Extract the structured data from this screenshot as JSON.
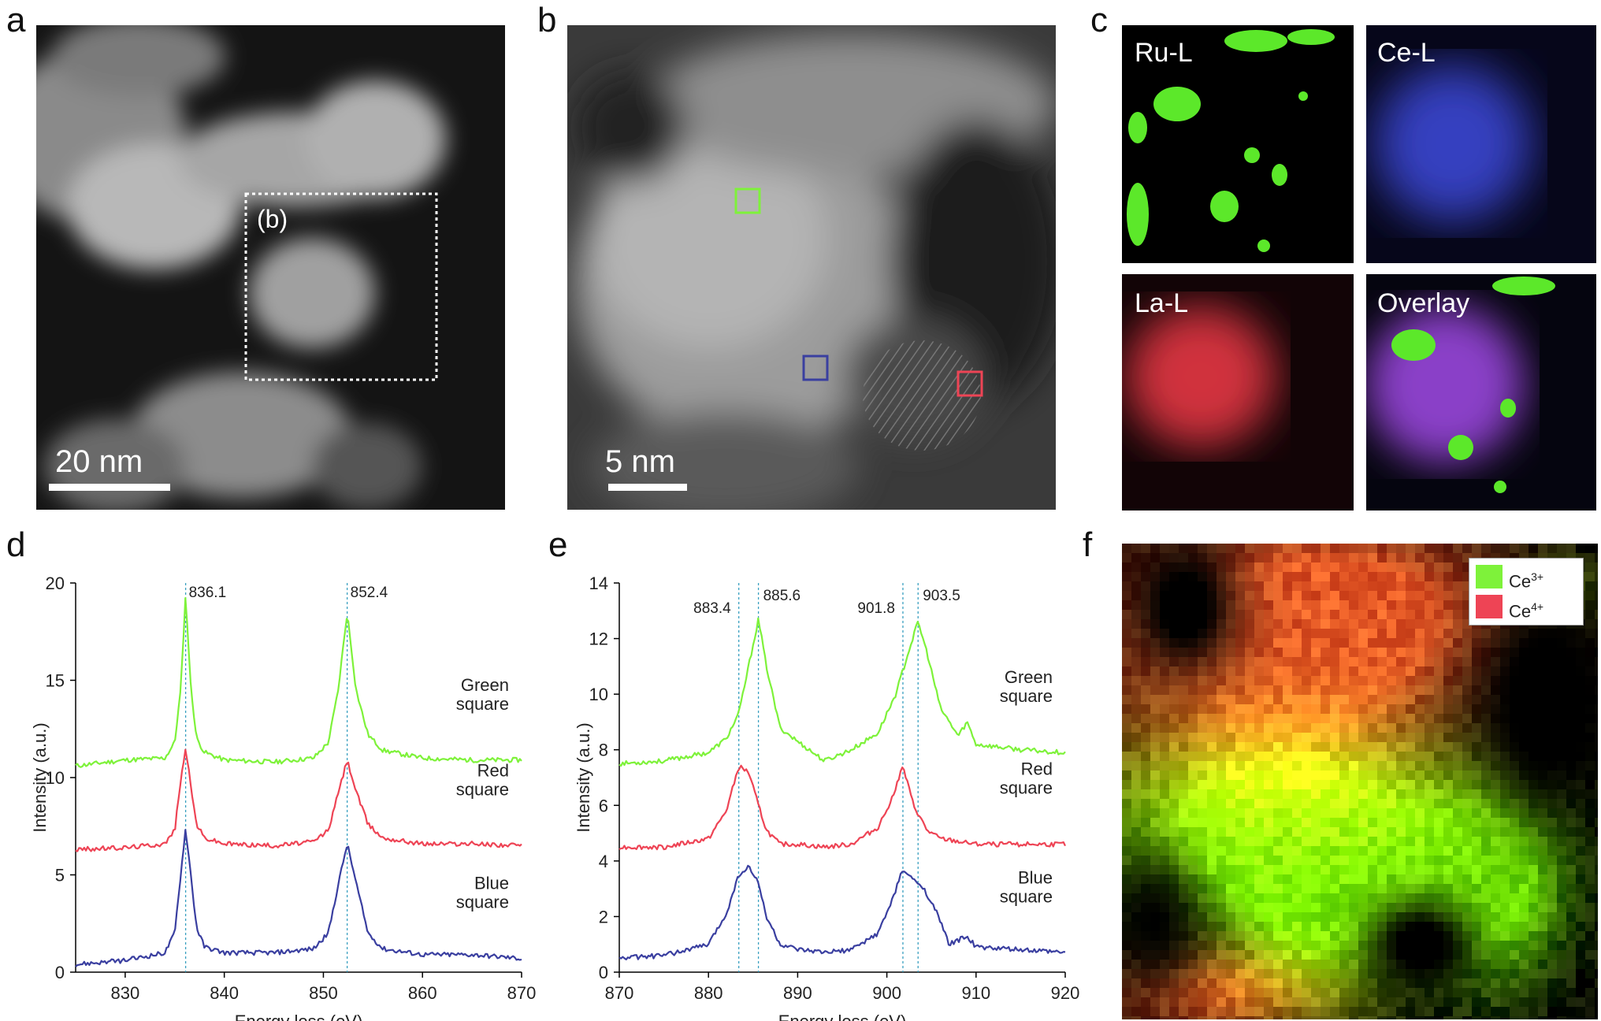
{
  "panels": {
    "a": {
      "letter": "a",
      "inset_label": "(b)",
      "scalebar": "20 nm"
    },
    "b": {
      "letter": "b",
      "scalebar": "5 nm"
    },
    "c": {
      "letter": "c",
      "maps": [
        "Ru-L",
        "Ce-L",
        "La-L",
        "Overlay"
      ]
    },
    "d": {
      "letter": "d"
    },
    "e": {
      "letter": "e"
    },
    "f": {
      "letter": "f",
      "legend": [
        "Ce3+",
        "Ce4+"
      ]
    }
  },
  "colors": {
    "green": "#7ef23a",
    "red": "#ee4455",
    "blue": "#3a3fa0",
    "guide": "#3aa0c0"
  },
  "chart_data": [
    {
      "id": "d",
      "type": "line",
      "xlabel": "Energy loss (eV)",
      "ylabel": "Intensity (a.u.)",
      "xlim": [
        825,
        870
      ],
      "ylim": [
        0,
        20
      ],
      "xticks": [
        830,
        840,
        850,
        860,
        870
      ],
      "yticks": [
        0,
        5,
        10,
        15,
        20
      ],
      "peak_lines": [
        836.1,
        852.4
      ],
      "peak_labels": [
        "836.1",
        "852.4"
      ],
      "series": [
        {
          "name": "Green square",
          "label_lines": [
            "Green",
            "square"
          ],
          "color": "#7ef23a",
          "x": [
            825,
            830,
            834,
            835,
            835.6,
            836.1,
            836.6,
            837.2,
            838,
            840,
            845,
            849,
            850.5,
            851.5,
            852.4,
            853.3,
            854.5,
            856,
            860,
            865,
            870
          ],
          "y": [
            10.6,
            10.9,
            11.0,
            11.8,
            14.5,
            19.4,
            14.8,
            12.0,
            11.3,
            10.9,
            10.8,
            11.0,
            11.8,
            14.5,
            18.5,
            14.5,
            12.2,
            11.4,
            11.0,
            10.9,
            10.9
          ]
        },
        {
          "name": "Red square",
          "label_lines": [
            "Red",
            "square"
          ],
          "color": "#ee4455",
          "x": [
            825,
            830,
            834,
            835,
            835.6,
            836.1,
            836.6,
            837.2,
            838,
            840,
            845,
            849,
            850.5,
            851.5,
            852.4,
            853.3,
            854.5,
            856,
            860,
            865,
            870
          ],
          "y": [
            6.3,
            6.4,
            6.6,
            7.3,
            9.8,
            11.6,
            9.6,
            7.6,
            6.9,
            6.6,
            6.5,
            6.7,
            7.3,
            9.2,
            10.9,
            9.3,
            7.6,
            6.9,
            6.6,
            6.6,
            6.5
          ]
        },
        {
          "name": "Blue square",
          "label_lines": [
            "Blue",
            "square"
          ],
          "color": "#3a3fa0",
          "x": [
            825,
            830,
            834,
            835,
            835.6,
            836.1,
            836.6,
            837.2,
            838,
            840,
            845,
            849,
            850.5,
            851.5,
            852.4,
            853.3,
            854.5,
            856,
            860,
            865,
            870
          ],
          "y": [
            0.4,
            0.6,
            1.0,
            2.0,
            5.0,
            7.4,
            5.1,
            2.3,
            1.3,
            1.0,
            1.0,
            1.2,
            2.0,
            4.5,
            6.6,
            4.6,
            2.0,
            1.2,
            0.9,
            0.9,
            0.7
          ]
        }
      ]
    },
    {
      "id": "e",
      "type": "line",
      "xlabel": "Energy loss (eV)",
      "ylabel": "Intensity (a.u.)",
      "xlim": [
        870,
        920
      ],
      "ylim": [
        0,
        14
      ],
      "xticks": [
        870,
        880,
        890,
        900,
        910,
        920
      ],
      "yticks": [
        0,
        2,
        4,
        6,
        8,
        10,
        12,
        14
      ],
      "peak_lines": [
        883.4,
        885.6,
        901.8,
        903.5
      ],
      "peak_labels": [
        "883.4",
        "885.6",
        "901.8",
        "903.5"
      ],
      "series": [
        {
          "name": "Green square",
          "label_lines": [
            "Green",
            "square"
          ],
          "color": "#7ef23a",
          "x": [
            870,
            875,
            880,
            882,
            883.4,
            884.5,
            885.6,
            886.5,
            888,
            890,
            893,
            896,
            899,
            901,
            902.5,
            903.5,
            904.5,
            906,
            908,
            909,
            910,
            915,
            920
          ],
          "y": [
            7.5,
            7.6,
            7.9,
            8.4,
            9.3,
            11.0,
            12.7,
            11.0,
            8.8,
            8.3,
            7.6,
            8.0,
            8.6,
            10.0,
            11.6,
            12.6,
            11.5,
            9.5,
            8.5,
            9.0,
            8.2,
            8.0,
            7.9
          ]
        },
        {
          "name": "Red square",
          "label_lines": [
            "Red",
            "square"
          ],
          "color": "#ee4455",
          "x": [
            870,
            875,
            880,
            882,
            883.4,
            884.5,
            885.6,
            886.5,
            888,
            890,
            893,
            896,
            899,
            900.5,
            901.8,
            903,
            904.5,
            906,
            908,
            910,
            915,
            920
          ],
          "y": [
            4.5,
            4.5,
            4.8,
            5.8,
            7.4,
            7.2,
            6.0,
            5.1,
            4.6,
            4.6,
            4.5,
            4.6,
            5.2,
            6.2,
            7.4,
            6.0,
            5.1,
            4.8,
            4.7,
            4.6,
            4.6,
            4.6
          ]
        },
        {
          "name": "Blue square",
          "label_lines": [
            "Blue",
            "square"
          ],
          "color": "#3a3fa0",
          "x": [
            870,
            875,
            880,
            882,
            883.4,
            884.5,
            885.6,
            886.5,
            888,
            890,
            893,
            896,
            899,
            900.5,
            901.8,
            903,
            904,
            905.5,
            907,
            909,
            910,
            915,
            920
          ],
          "y": [
            0.5,
            0.6,
            1.0,
            2.1,
            3.5,
            3.8,
            3.2,
            2.0,
            1.0,
            0.8,
            0.7,
            0.8,
            1.4,
            2.5,
            3.7,
            3.3,
            3.1,
            2.2,
            1.0,
            1.3,
            0.9,
            0.8,
            0.7
          ]
        }
      ]
    }
  ]
}
